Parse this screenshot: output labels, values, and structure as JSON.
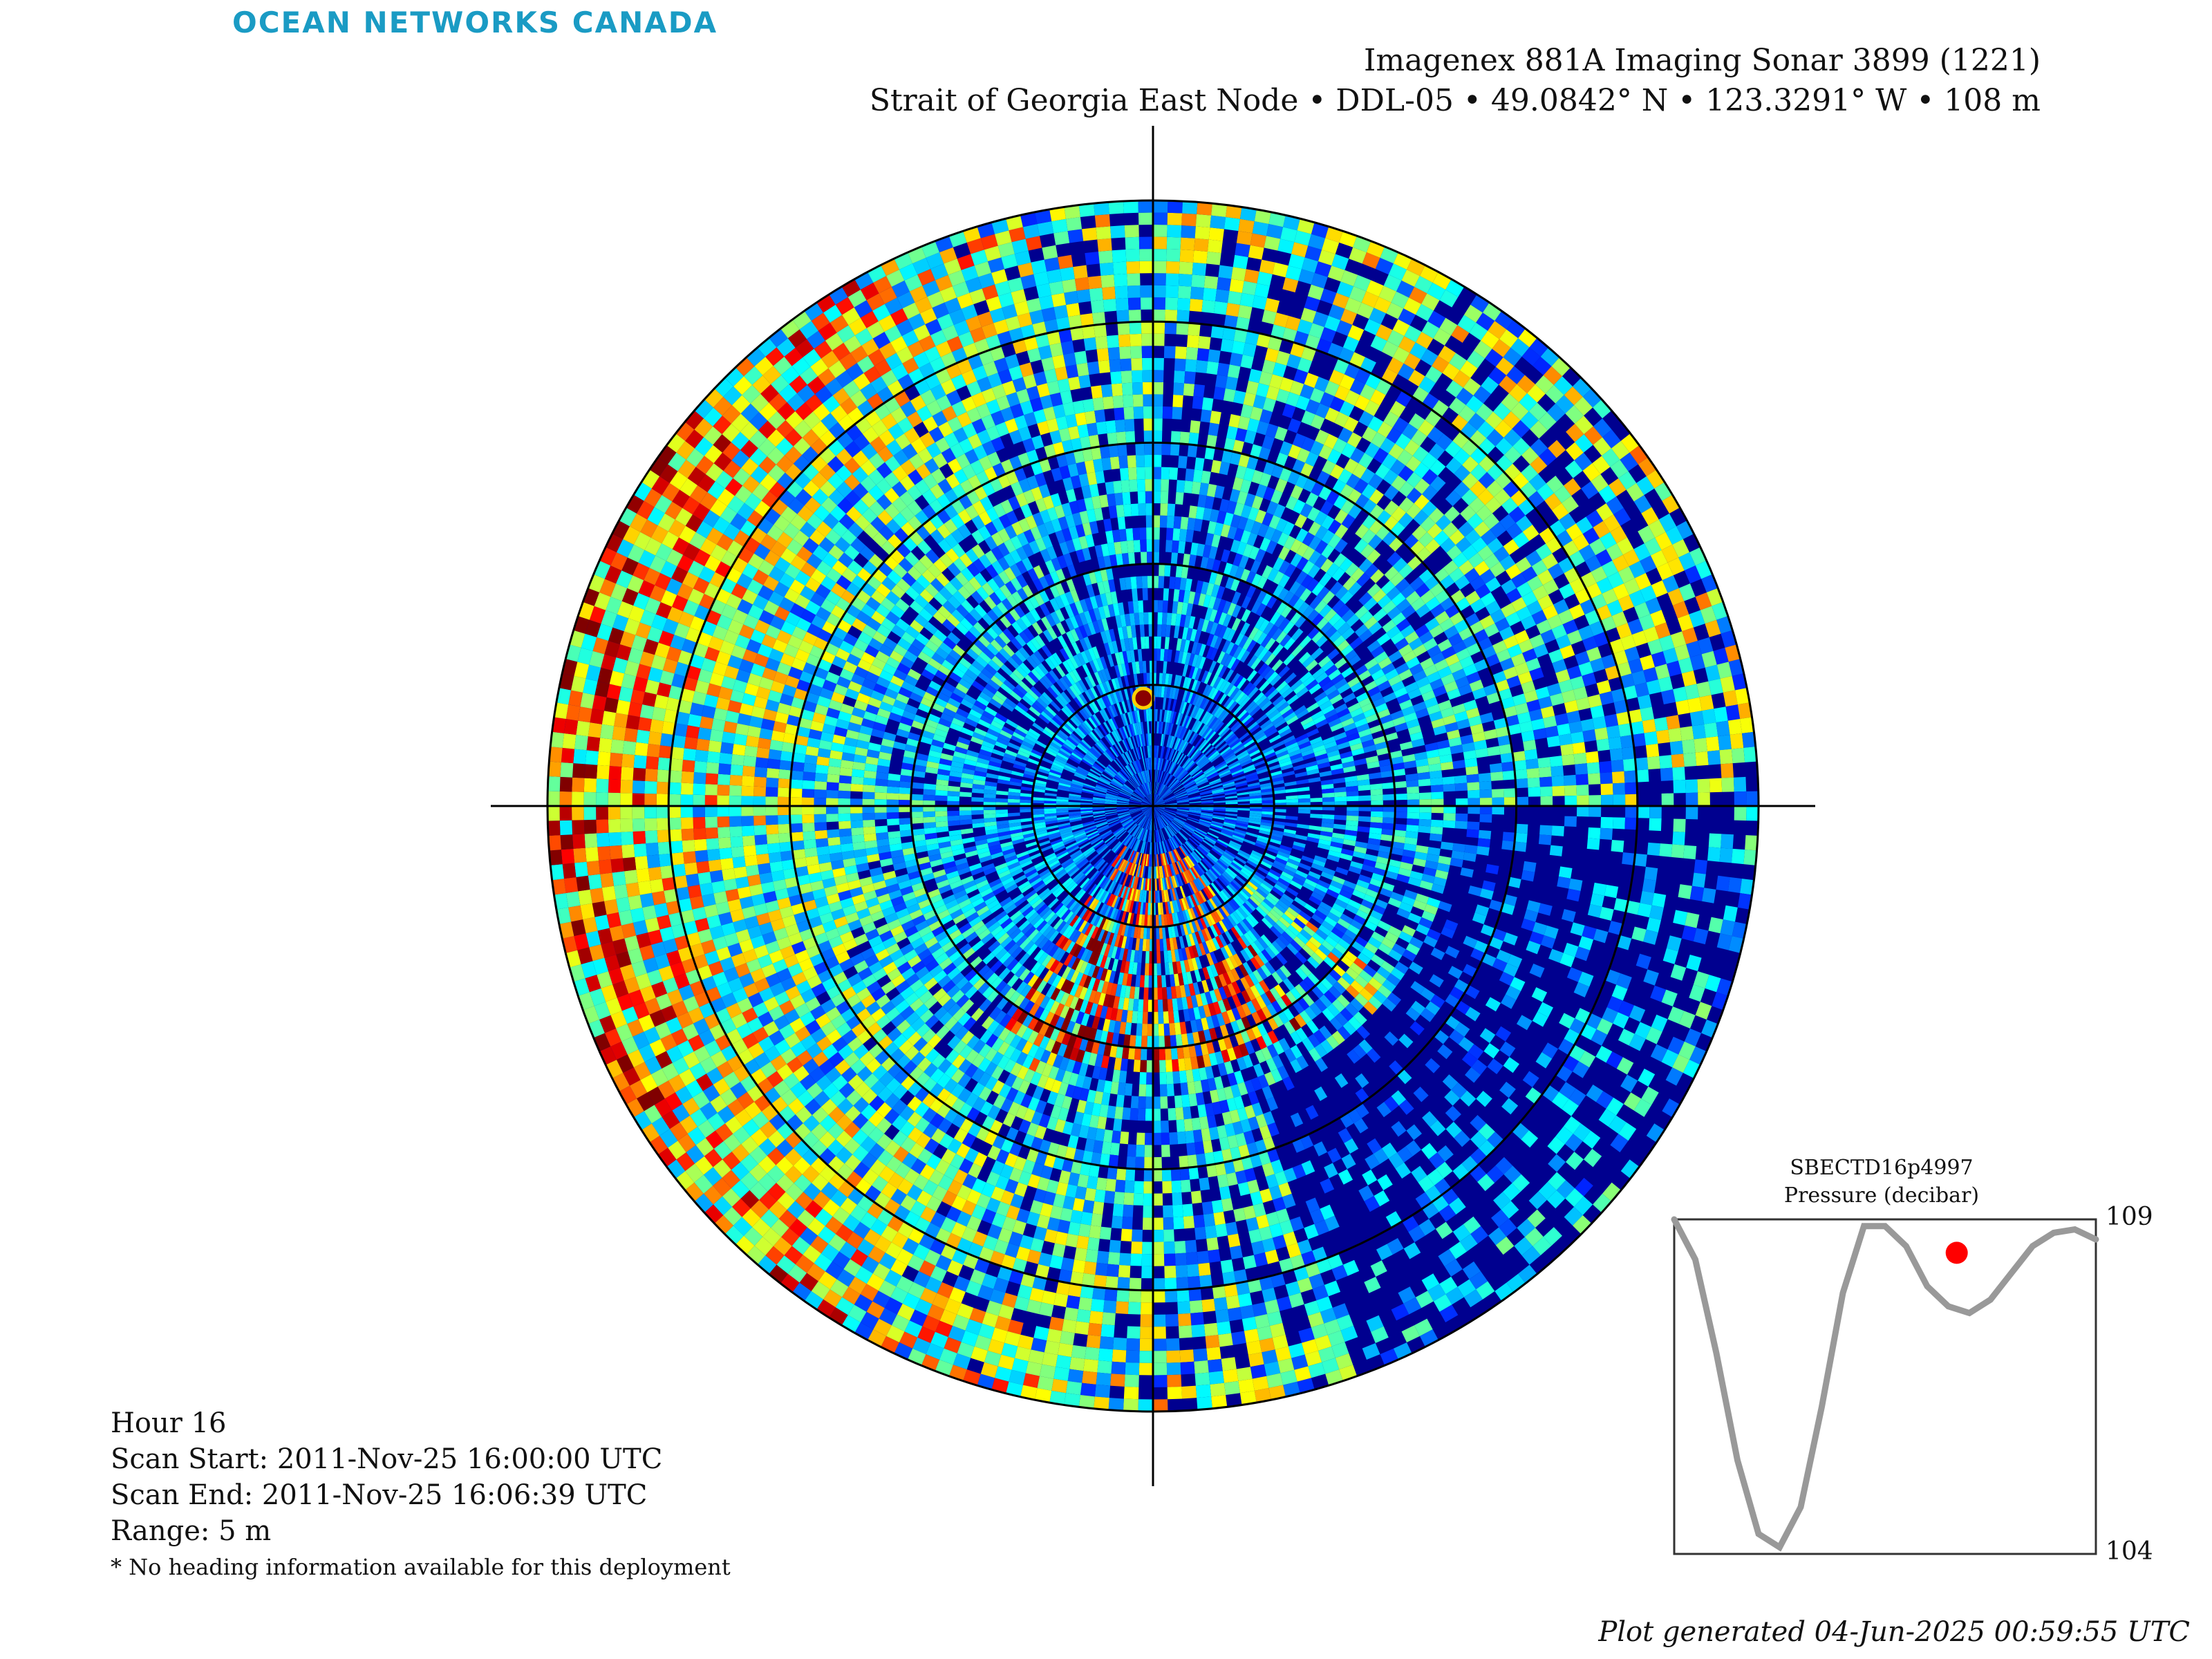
{
  "brand": "OCEAN NETWORKS CANADA",
  "title": {
    "line1": "Imagenex 881A Imaging Sonar 3899 (1221)",
    "line2": "Strait of Georgia East Node • DDL-05 • 49.0842° N • 123.3291° W • 108 m"
  },
  "info": {
    "hour": "Hour 16",
    "scan_start": "Scan Start: 2011-Nov-25 16:00:00 UTC",
    "scan_end": "Scan End: 2011-Nov-25 16:06:39 UTC",
    "range": "Range: 5 m",
    "note": "* No heading information available for this deployment"
  },
  "footer": "Plot generated 04-Jun-2025 00:59:55 UTC",
  "colors": {
    "background": "#00008f",
    "ring_lines": "#000000",
    "colormap": "jet",
    "pressure_line": "#999999",
    "marker": "#ff0000",
    "logo": "#1a9bc4"
  },
  "chart_data": [
    {
      "type": "heatmap",
      "description_kind": "polar sonar intensity image",
      "range_max_m": 5,
      "range_rings_m": [
        1,
        2,
        3,
        4,
        5
      ],
      "colormap": "jet",
      "grid": true
    },
    {
      "type": "line",
      "title": "SBECTD16p4997",
      "ylabel": "Pressure (decibar)",
      "ylim": [
        104,
        109
      ],
      "yticks": [
        "109",
        "104"
      ],
      "x": [
        0,
        0.05,
        0.1,
        0.15,
        0.2,
        0.25,
        0.3,
        0.35,
        0.4,
        0.45,
        0.5,
        0.55,
        0.6,
        0.65,
        0.7,
        0.75,
        0.8,
        0.85,
        0.9,
        0.95,
        1.0
      ],
      "values": [
        109.0,
        108.4,
        107.0,
        105.4,
        104.3,
        104.1,
        104.7,
        106.2,
        107.9,
        108.9,
        108.9,
        108.6,
        108.0,
        107.7,
        107.6,
        107.8,
        108.2,
        108.6,
        108.8,
        108.85,
        108.7
      ],
      "marker": {
        "x": 0.67,
        "y": 108.5
      }
    }
  ]
}
